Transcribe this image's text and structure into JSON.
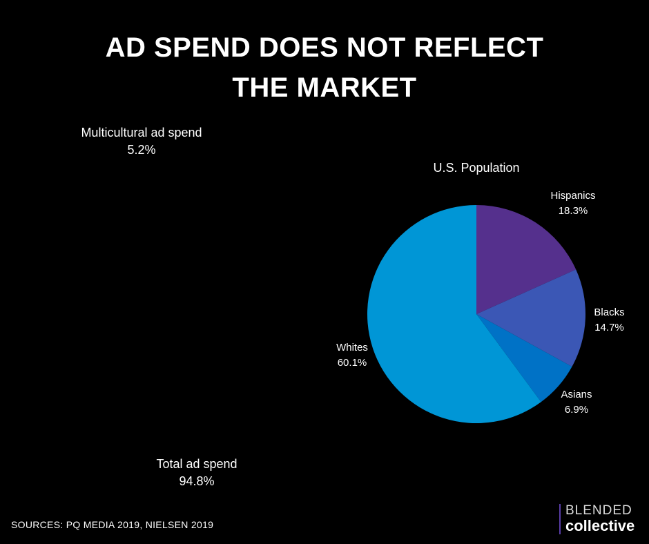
{
  "title": {
    "line1": "AD SPEND DOES NOT REFLECT",
    "line2": "THE MARKET"
  },
  "chart_data": [
    {
      "type": "pie",
      "title": "",
      "slices": [
        {
          "label": "Multicultural ad spend",
          "value_label": "5.2%",
          "value": 5.2,
          "color": "#0072c6"
        },
        {
          "label": "Total ad spend",
          "value_label": "94.8%",
          "value": 94.8,
          "color": "#55308d"
        }
      ]
    },
    {
      "type": "pie",
      "title": "U.S. Population",
      "slices": [
        {
          "label": "Hispanics",
          "value_label": "18.3%",
          "value": 18.3,
          "color": "#55308d"
        },
        {
          "label": "Blacks",
          "value_label": "14.7%",
          "value": 14.7,
          "color": "#3b57b5"
        },
        {
          "label": "Asians",
          "value_label": "6.9%",
          "value": 6.9,
          "color": "#0072c6"
        },
        {
          "label": "Whites",
          "value_label": "60.1%",
          "value": 60.1,
          "color": "#0096d6"
        }
      ]
    }
  ],
  "footer": {
    "sources": "SOURCES: PQ MEDIA 2019, NIELSEN 2019"
  },
  "logo": {
    "line1": "BLENDED",
    "line2": "collective"
  }
}
